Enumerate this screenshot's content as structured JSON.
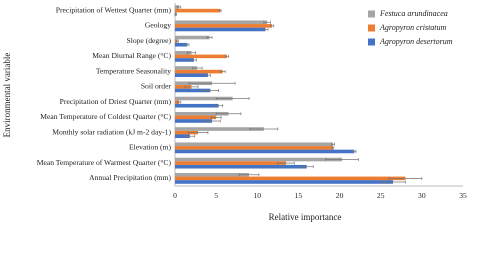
{
  "chart_data": {
    "type": "hbar",
    "x_label": "Relative importance",
    "y_label": "Environmental variable",
    "categories": [
      "Precipitation of Wettest Quarter (mm)",
      "Geology",
      "Slope (degree)",
      "Mean Diurnal Range (°C)",
      "Temperature Seasonality",
      "Soil order",
      "Precipitation of Driest Quarter (mm)",
      "Mean Temperature of Coldest Quarter (°C)",
      "Monthly solar radiation (kJ m-2 day-1)",
      "Elevation (m)",
      "Mean Temperature of Warmest  Quarter (°C)",
      "Annual Precipitation (mm)"
    ],
    "series": [
      {
        "name": "Festuca arundinacea",
        "color": "#a5a5a5",
        "values": [
          0.5,
          11.2,
          4.2,
          2.0,
          2.7,
          4.5,
          7.0,
          6.5,
          10.8,
          19.2,
          20.3,
          9.0
        ],
        "errors": [
          0.2,
          0.4,
          0.3,
          0.5,
          0.6,
          2.8,
          2.0,
          1.5,
          1.7,
          0.2,
          2.0,
          1.2
        ]
      },
      {
        "name": "Agropyron cristatum",
        "color": "#ed7d31",
        "values": [
          5.5,
          11.8,
          0.3,
          6.3,
          5.8,
          2.0,
          0.5,
          5.0,
          2.8,
          19.2,
          13.5,
          28.0
        ],
        "errors": [
          0.1,
          0.2,
          0.1,
          0.2,
          0.3,
          0.8,
          0.2,
          0.6,
          1.2,
          0.1,
          1.0,
          2.0
        ]
      },
      {
        "name": "Agropyron desertorum",
        "color": "#4472c4",
        "values": [
          0.1,
          11.0,
          1.5,
          2.3,
          4.0,
          4.3,
          5.3,
          4.5,
          1.8,
          21.8,
          16.0,
          26.5
        ],
        "errors": [
          0.1,
          0.3,
          0.2,
          0.3,
          0.3,
          1.0,
          0.5,
          1.0,
          0.6,
          0.2,
          0.8,
          1.5
        ]
      }
    ],
    "xlim": [
      0,
      35
    ],
    "xticks": [
      0,
      5,
      10,
      15,
      20,
      25,
      30,
      35
    ],
    "grid": false
  }
}
